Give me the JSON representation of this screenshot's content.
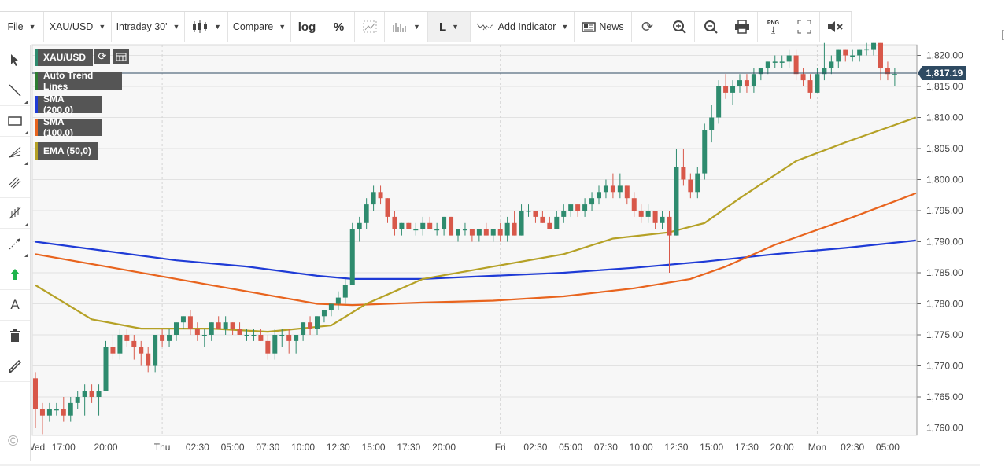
{
  "toolbar": {
    "file": "File",
    "symbol": "XAU/USD",
    "interval": "Intraday 30'",
    "compare": "Compare",
    "log": "log",
    "percent": "%",
    "line_tool": "L",
    "add_indicator": "Add Indicator",
    "news": "News",
    "png": "PNG"
  },
  "legend": {
    "symbol": "XAU/USD",
    "items": [
      {
        "label": "Auto Trend Lines",
        "color": "#2e7d32"
      },
      {
        "label": "SMA (200,0)",
        "color": "#1f3bd6"
      },
      {
        "label": "SMA (100,0)",
        "color": "#e8641e"
      },
      {
        "label": "EMA (50,0)",
        "color": "#b5a126"
      }
    ]
  },
  "sidebar": {
    "text_tool": "A"
  },
  "copyright": "©",
  "current_price": "1,817.19",
  "colors": {
    "up": "#2e8b6e",
    "down": "#d8584a",
    "sma200": "#1f3bd6",
    "sma100": "#e8641e",
    "ema50": "#b5a126",
    "price_line": "#2e4a62"
  },
  "chart_data": {
    "type": "candlestick",
    "y_ticks": [
      "1,760.00",
      "1,765.00",
      "1,770.00",
      "1,775.00",
      "1,780.00",
      "1,785.00",
      "1,790.00",
      "1,795.00",
      "1,800.00",
      "1,805.00",
      "1,810.00",
      "1,815.00",
      "1,820.00"
    ],
    "ylim": [
      1758,
      1822
    ],
    "x_ticks": [
      {
        "label": "Wed",
        "i": 0
      },
      {
        "label": "17:00",
        "i": 4
      },
      {
        "label": "20:00",
        "i": 10
      },
      {
        "label": "Thu",
        "i": 18
      },
      {
        "label": "02:30",
        "i": 23
      },
      {
        "label": "05:00",
        "i": 28
      },
      {
        "label": "07:30",
        "i": 33
      },
      {
        "label": "10:00",
        "i": 38
      },
      {
        "label": "12:30",
        "i": 43
      },
      {
        "label": "15:00",
        "i": 48
      },
      {
        "label": "17:30",
        "i": 53
      },
      {
        "label": "20:00",
        "i": 58
      },
      {
        "label": "Fri",
        "i": 66
      },
      {
        "label": "02:30",
        "i": 71
      },
      {
        "label": "05:00",
        "i": 76
      },
      {
        "label": "07:30",
        "i": 81
      },
      {
        "label": "10:00",
        "i": 86
      },
      {
        "label": "12:30",
        "i": 91
      },
      {
        "label": "15:00",
        "i": 96
      },
      {
        "label": "17:30",
        "i": 101
      },
      {
        "label": "20:00",
        "i": 106
      },
      {
        "label": "Mon",
        "i": 111
      },
      {
        "label": "02:30",
        "i": 116
      },
      {
        "label": "05:00",
        "i": 121
      }
    ],
    "ohlc": [
      [
        1768,
        1769,
        1760,
        1763
      ],
      [
        1763,
        1764,
        1759,
        1762
      ],
      [
        1762,
        1764,
        1761,
        1763
      ],
      [
        1763,
        1764,
        1762,
        1763
      ],
      [
        1763,
        1765,
        1761,
        1762
      ],
      [
        1762,
        1765,
        1761,
        1764
      ],
      [
        1764,
        1766,
        1763,
        1765
      ],
      [
        1765,
        1767,
        1762,
        1766
      ],
      [
        1766,
        1767,
        1764,
        1765
      ],
      [
        1765,
        1767,
        1762,
        1766
      ],
      [
        1766,
        1774,
        1766,
        1773
      ],
      [
        1773,
        1775,
        1771,
        1772
      ],
      [
        1772,
        1776,
        1771,
        1775
      ],
      [
        1775,
        1776,
        1773,
        1774
      ],
      [
        1774,
        1775,
        1771,
        1773
      ],
      [
        1773,
        1774,
        1770,
        1772
      ],
      [
        1772,
        1773,
        1769,
        1770
      ],
      [
        1770,
        1775,
        1769,
        1775
      ],
      [
        1775,
        1776,
        1773,
        1774
      ],
      [
        1774,
        1776,
        1773,
        1775
      ],
      [
        1775,
        1777,
        1774,
        1777
      ],
      [
        1777,
        1778,
        1776,
        1778
      ],
      [
        1778,
        1779,
        1775,
        1776
      ],
      [
        1776,
        1777,
        1774,
        1775
      ],
      [
        1775,
        1776,
        1773,
        1775
      ],
      [
        1775,
        1777,
        1774,
        1777
      ],
      [
        1777,
        1778,
        1776,
        1776
      ],
      [
        1776,
        1778,
        1775,
        1777
      ],
      [
        1777,
        1777,
        1775,
        1776
      ],
      [
        1776,
        1777,
        1775,
        1775
      ],
      [
        1775,
        1776,
        1774,
        1775
      ],
      [
        1775,
        1776,
        1774,
        1775
      ],
      [
        1775,
        1776,
        1774,
        1774
      ],
      [
        1774,
        1775,
        1771,
        1772
      ],
      [
        1772,
        1776,
        1771,
        1775
      ],
      [
        1775,
        1776,
        1773,
        1775
      ],
      [
        1775,
        1776,
        1772,
        1774
      ],
      [
        1774,
        1775,
        1772,
        1775
      ],
      [
        1775,
        1777,
        1774,
        1777
      ],
      [
        1777,
        1778,
        1775,
        1776
      ],
      [
        1776,
        1778,
        1775,
        1778
      ],
      [
        1778,
        1779,
        1777,
        1779
      ],
      [
        1779,
        1780,
        1778,
        1780
      ],
      [
        1780,
        1782,
        1779,
        1781
      ],
      [
        1781,
        1784,
        1780,
        1783
      ],
      [
        1783,
        1793,
        1783,
        1792
      ],
      [
        1792,
        1794,
        1790,
        1793
      ],
      [
        1793,
        1797,
        1792,
        1796
      ],
      [
        1796,
        1799,
        1795,
        1798
      ],
      [
        1798,
        1799,
        1796,
        1797
      ],
      [
        1797,
        1797,
        1793,
        1794
      ],
      [
        1794,
        1795,
        1791,
        1792
      ],
      [
        1792,
        1793,
        1791,
        1793
      ],
      [
        1793,
        1793,
        1792,
        1792
      ],
      [
        1792,
        1793,
        1791,
        1792
      ],
      [
        1792,
        1794,
        1791,
        1793
      ],
      [
        1793,
        1794,
        1792,
        1792
      ],
      [
        1792,
        1793,
        1791,
        1792
      ],
      [
        1792,
        1794,
        1791,
        1794
      ],
      [
        1794,
        1794,
        1791,
        1791
      ],
      [
        1791,
        1792,
        1790,
        1792
      ],
      [
        1792,
        1793,
        1791,
        1792
      ],
      [
        1792,
        1792,
        1790,
        1791
      ],
      [
        1791,
        1792,
        1790,
        1792
      ],
      [
        1792,
        1793,
        1791,
        1791
      ],
      [
        1791,
        1792,
        1790,
        1792
      ],
      [
        1792,
        1793,
        1790,
        1791
      ],
      [
        1791,
        1794,
        1790,
        1793
      ],
      [
        1793,
        1795,
        1791,
        1791
      ],
      [
        1791,
        1796,
        1791,
        1795
      ],
      [
        1795,
        1796,
        1794,
        1795
      ],
      [
        1795,
        1795,
        1793,
        1794
      ],
      [
        1794,
        1795,
        1793,
        1793
      ],
      [
        1793,
        1794,
        1792,
        1792
      ],
      [
        1792,
        1795,
        1792,
        1794
      ],
      [
        1794,
        1796,
        1793,
        1795
      ],
      [
        1795,
        1796,
        1794,
        1796
      ],
      [
        1796,
        1796,
        1794,
        1795
      ],
      [
        1795,
        1797,
        1794,
        1796
      ],
      [
        1796,
        1798,
        1795,
        1797
      ],
      [
        1797,
        1799,
        1796,
        1798
      ],
      [
        1798,
        1800,
        1797,
        1799
      ],
      [
        1799,
        1801,
        1797,
        1798
      ],
      [
        1798,
        1801,
        1797,
        1799
      ],
      [
        1799,
        1799,
        1796,
        1797
      ],
      [
        1797,
        1798,
        1794,
        1795
      ],
      [
        1795,
        1796,
        1793,
        1794
      ],
      [
        1794,
        1796,
        1793,
        1795
      ],
      [
        1795,
        1795,
        1792,
        1793
      ],
      [
        1793,
        1795,
        1792,
        1794
      ],
      [
        1794,
        1795,
        1785,
        1791
      ],
      [
        1791,
        1805,
        1791,
        1802
      ],
      [
        1802,
        1805,
        1799,
        1800
      ],
      [
        1800,
        1801,
        1797,
        1798
      ],
      [
        1798,
        1802,
        1797,
        1801
      ],
      [
        1801,
        1809,
        1800,
        1808
      ],
      [
        1808,
        1812,
        1806,
        1810
      ],
      [
        1810,
        1816,
        1809,
        1815
      ],
      [
        1815,
        1817,
        1813,
        1814
      ],
      [
        1814,
        1816,
        1812,
        1815
      ],
      [
        1815,
        1817,
        1814,
        1816
      ],
      [
        1816,
        1817,
        1814,
        1815
      ],
      [
        1815,
        1818,
        1814,
        1817
      ],
      [
        1817,
        1818,
        1816,
        1818
      ],
      [
        1818,
        1819,
        1817,
        1819
      ],
      [
        1819,
        1820,
        1818,
        1819
      ],
      [
        1819,
        1820,
        1818,
        1819
      ],
      [
        1819,
        1821,
        1818,
        1820
      ],
      [
        1820,
        1821,
        1816,
        1817
      ],
      [
        1817,
        1818,
        1815,
        1816
      ],
      [
        1816,
        1817,
        1813,
        1814
      ],
      [
        1814,
        1818,
        1814,
        1817
      ],
      [
        1817,
        1822,
        1816,
        1818
      ],
      [
        1818,
        1820,
        1817,
        1819
      ],
      [
        1819,
        1821,
        1818,
        1821
      ],
      [
        1821,
        1821,
        1819,
        1820
      ],
      [
        1820,
        1821,
        1819,
        1820
      ],
      [
        1820,
        1821,
        1819,
        1821
      ],
      [
        1821,
        1822,
        1820,
        1821
      ],
      [
        1821,
        1822,
        1820,
        1822
      ],
      [
        1822,
        1822,
        1816,
        1818
      ],
      [
        1818,
        1819,
        1816,
        1817
      ],
      [
        1817,
        1818,
        1815,
        1817
      ]
    ],
    "series": [
      {
        "name": "SMA (200,0)",
        "points": [
          [
            0,
            1790.0
          ],
          [
            10,
            1788.5
          ],
          [
            20,
            1787.0
          ],
          [
            30,
            1786.0
          ],
          [
            40,
            1784.5
          ],
          [
            45,
            1784.0
          ],
          [
            55,
            1784.0
          ],
          [
            65,
            1784.5
          ],
          [
            75,
            1785.0
          ],
          [
            85,
            1785.8
          ],
          [
            95,
            1786.8
          ],
          [
            105,
            1788.0
          ],
          [
            115,
            1789.0
          ],
          [
            125,
            1790.2
          ]
        ]
      },
      {
        "name": "SMA (100,0)",
        "points": [
          [
            0,
            1788.0
          ],
          [
            10,
            1786.0
          ],
          [
            20,
            1784.0
          ],
          [
            30,
            1782.0
          ],
          [
            40,
            1780.0
          ],
          [
            45,
            1779.8
          ],
          [
            55,
            1780.2
          ],
          [
            65,
            1780.5
          ],
          [
            75,
            1781.2
          ],
          [
            85,
            1782.5
          ],
          [
            93,
            1784.0
          ],
          [
            98,
            1786.0
          ],
          [
            105,
            1789.5
          ],
          [
            115,
            1793.5
          ],
          [
            125,
            1797.8
          ]
        ]
      },
      {
        "name": "EMA (50,0)",
        "points": [
          [
            0,
            1783.0
          ],
          [
            8,
            1777.5
          ],
          [
            15,
            1776.0
          ],
          [
            25,
            1776.0
          ],
          [
            33,
            1775.5
          ],
          [
            42,
            1776.5
          ],
          [
            47,
            1780.0
          ],
          [
            55,
            1784.0
          ],
          [
            65,
            1786.0
          ],
          [
            75,
            1788.0
          ],
          [
            82,
            1790.5
          ],
          [
            90,
            1791.5
          ],
          [
            95,
            1793.0
          ],
          [
            100,
            1797.0
          ],
          [
            108,
            1803.0
          ],
          [
            115,
            1806.0
          ],
          [
            125,
            1810.0
          ]
        ]
      }
    ]
  }
}
